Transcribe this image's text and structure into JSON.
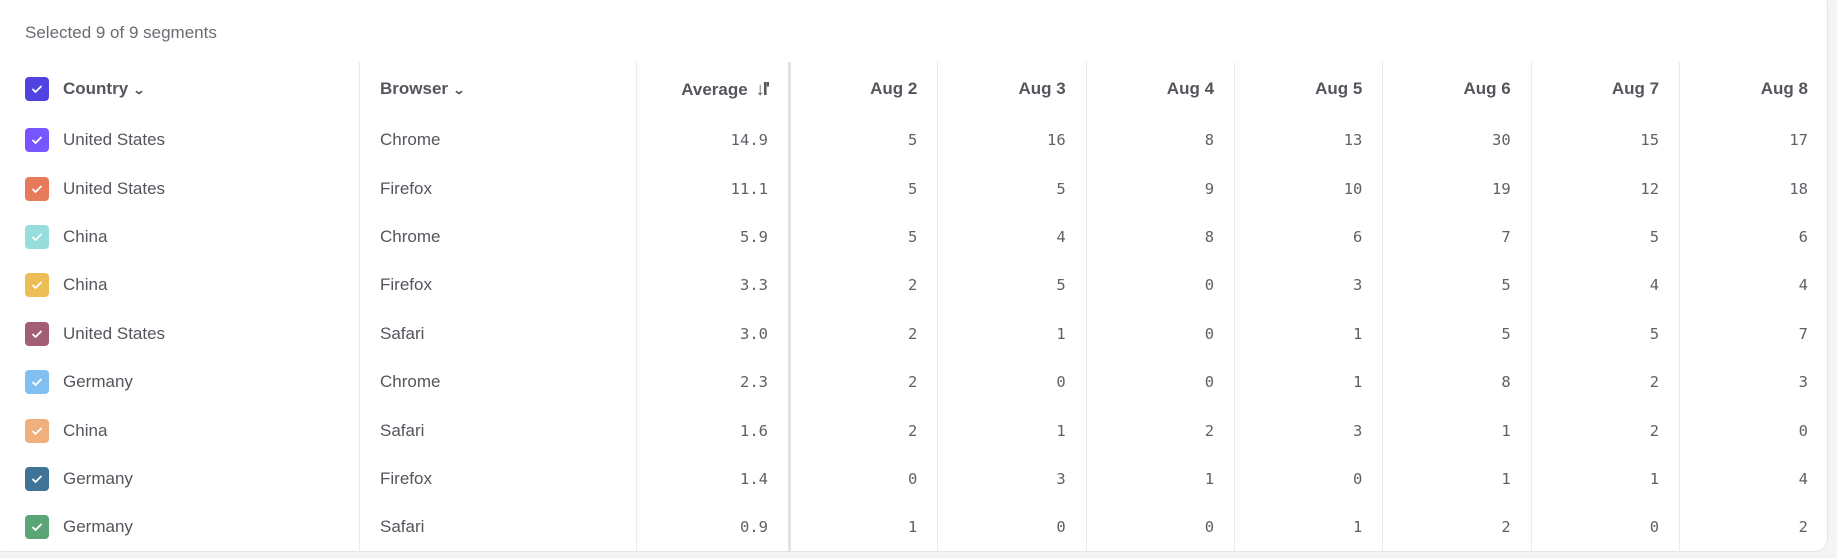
{
  "summary": "Selected 9 of 9 segments",
  "header": {
    "country": "Country",
    "browser": "Browser",
    "average": "Average",
    "select_all_color": "#4F44E0",
    "dates": [
      "Aug 2",
      "Aug 3",
      "Aug 4",
      "Aug 5",
      "Aug 6",
      "Aug 7",
      "Aug 8"
    ]
  },
  "rows": [
    {
      "country": "United States",
      "browser": "Chrome",
      "average": "14.9",
      "color": "#7856FF",
      "values": [
        "5",
        "16",
        "8",
        "13",
        "30",
        "15",
        "17"
      ]
    },
    {
      "country": "United States",
      "browser": "Firefox",
      "average": "11.1",
      "color": "#E67A5B",
      "values": [
        "5",
        "5",
        "9",
        "10",
        "19",
        "12",
        "18"
      ]
    },
    {
      "country": "China",
      "browser": "Chrome",
      "average": "5.9",
      "color": "#97DDDB",
      "values": [
        "5",
        "4",
        "8",
        "6",
        "7",
        "5",
        "6"
      ]
    },
    {
      "country": "China",
      "browser": "Firefox",
      "average": "3.3",
      "color": "#EDBE55",
      "values": [
        "2",
        "5",
        "0",
        "3",
        "5",
        "4",
        "4"
      ]
    },
    {
      "country": "United States",
      "browser": "Safari",
      "average": "3.0",
      "color": "#A25E72",
      "values": [
        "2",
        "1",
        "0",
        "1",
        "5",
        "5",
        "7"
      ]
    },
    {
      "country": "Germany",
      "browser": "Chrome",
      "average": "2.3",
      "color": "#80BFF0",
      "values": [
        "2",
        "0",
        "0",
        "1",
        "8",
        "2",
        "3"
      ]
    },
    {
      "country": "China",
      "browser": "Safari",
      "average": "1.6",
      "color": "#EFB07E",
      "values": [
        "2",
        "1",
        "2",
        "3",
        "1",
        "2",
        "0"
      ]
    },
    {
      "country": "Germany",
      "browser": "Firefox",
      "average": "1.4",
      "color": "#3F7397",
      "values": [
        "0",
        "3",
        "1",
        "0",
        "1",
        "1",
        "4"
      ]
    },
    {
      "country": "Germany",
      "browser": "Safari",
      "average": "0.9",
      "color": "#5BA476",
      "values": [
        "1",
        "0",
        "0",
        "1",
        "2",
        "0",
        "2"
      ]
    }
  ]
}
